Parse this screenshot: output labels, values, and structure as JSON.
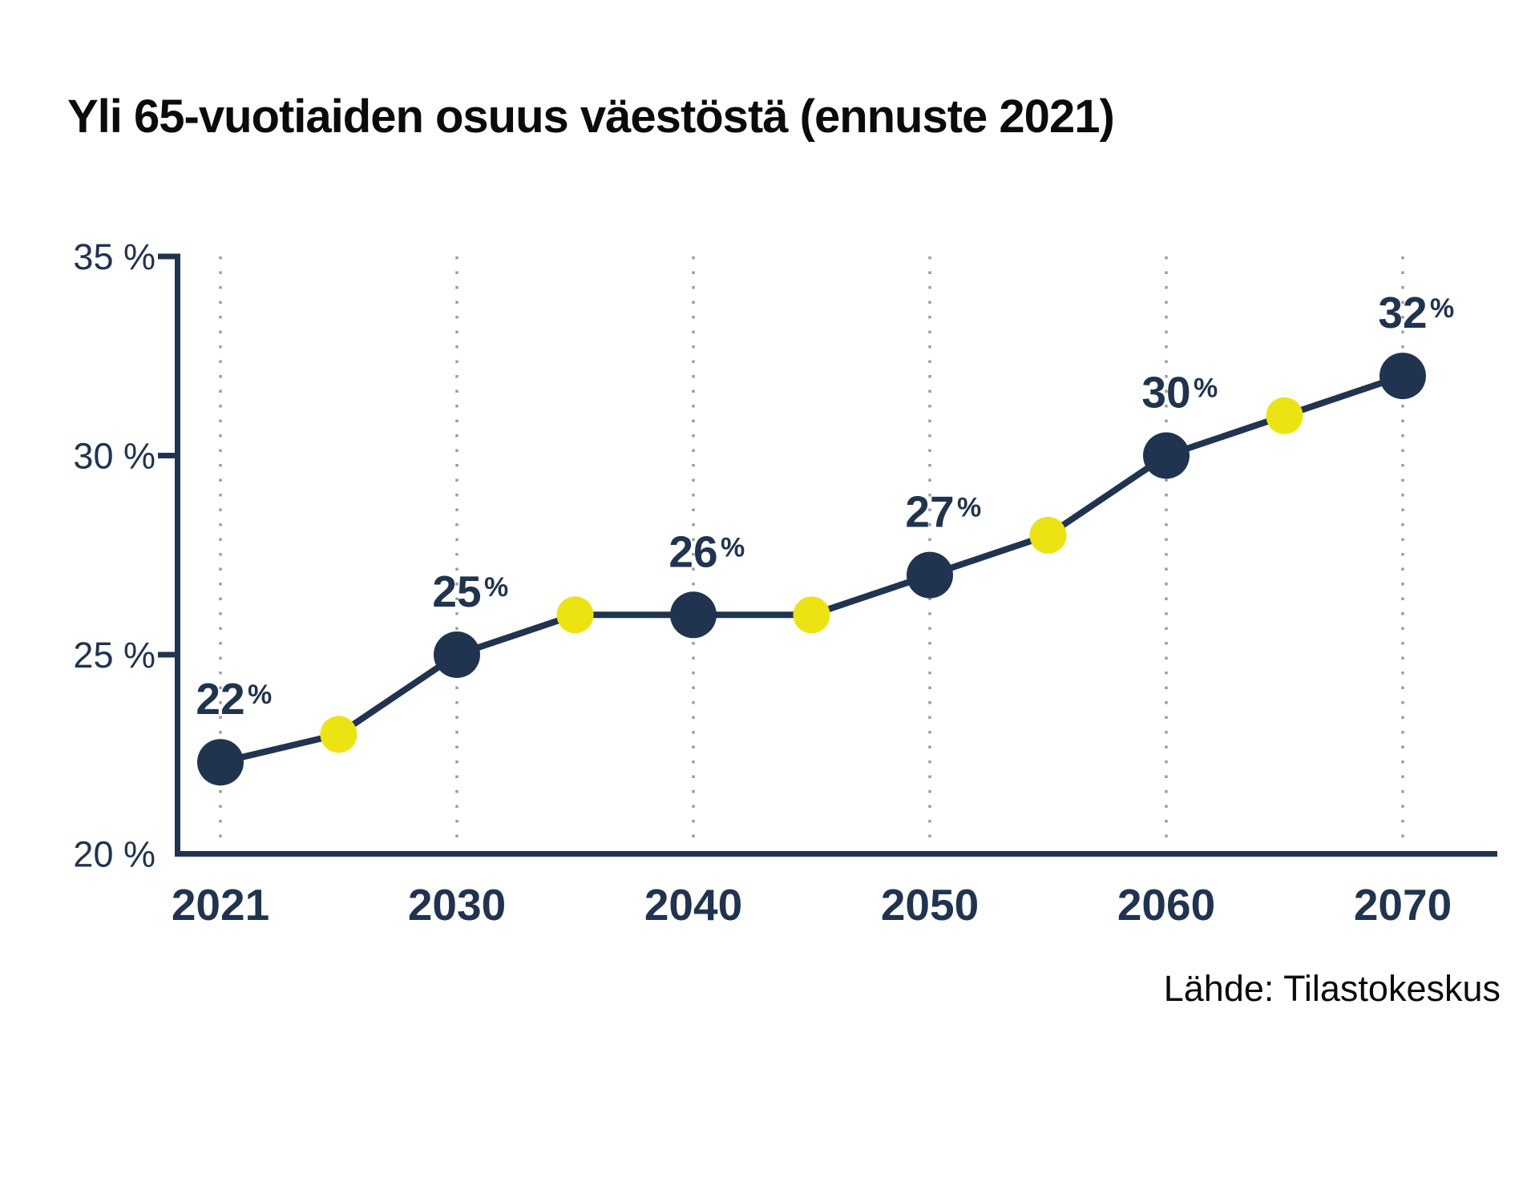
{
  "title": "Yli 65-vuotiaiden osuus väestöstä (ennuste 2021)",
  "source": "Lähde: Tilastokeskus",
  "colors": {
    "navy": "#203450",
    "yellow": "#ece412",
    "grid_gray": "#9e9e9e",
    "text_black": "#0b0b0b"
  },
  "chart_data": {
    "type": "line",
    "title": "Yli 65-vuotiaiden osuus väestöstä (ennuste 2021)",
    "source": "Lähde: Tilastokeskus",
    "ylim": [
      20,
      35
    ],
    "grid": "vertical-dotted",
    "legend": "none",
    "label_suffix": "%",
    "y_ticks": [
      {
        "value": 35,
        "label": "35 %",
        "tick": true
      },
      {
        "value": 30,
        "label": "30 %",
        "tick": true
      },
      {
        "value": 25,
        "label": "25 %",
        "tick": true
      },
      {
        "value": 20,
        "label": "20 %",
        "tick": false
      }
    ],
    "x_ticks": [
      {
        "year": 2021,
        "label": "2021"
      },
      {
        "year": 2030,
        "label": "2030"
      },
      {
        "year": 2040,
        "label": "2040"
      },
      {
        "year": 2050,
        "label": "2050"
      },
      {
        "year": 2060,
        "label": "2060"
      },
      {
        "year": 2070,
        "label": "2070"
      }
    ],
    "points": [
      {
        "year": 2021,
        "value": 22.3,
        "type": "major",
        "label": "22"
      },
      {
        "year": 2025,
        "value": 23,
        "type": "minor",
        "label": null
      },
      {
        "year": 2030,
        "value": 25,
        "type": "major",
        "label": "25"
      },
      {
        "year": 2035,
        "value": 26,
        "type": "minor",
        "label": null
      },
      {
        "year": 2040,
        "value": 26,
        "type": "major",
        "label": "26"
      },
      {
        "year": 2045,
        "value": 26,
        "type": "minor",
        "label": null
      },
      {
        "year": 2050,
        "value": 27,
        "type": "major",
        "label": "27"
      },
      {
        "year": 2055,
        "value": 28,
        "type": "minor",
        "label": null
      },
      {
        "year": 2060,
        "value": 30,
        "type": "major",
        "label": "30"
      },
      {
        "year": 2065,
        "value": 31,
        "type": "minor",
        "label": null
      },
      {
        "year": 2070,
        "value": 32,
        "type": "major",
        "label": "32"
      }
    ]
  }
}
